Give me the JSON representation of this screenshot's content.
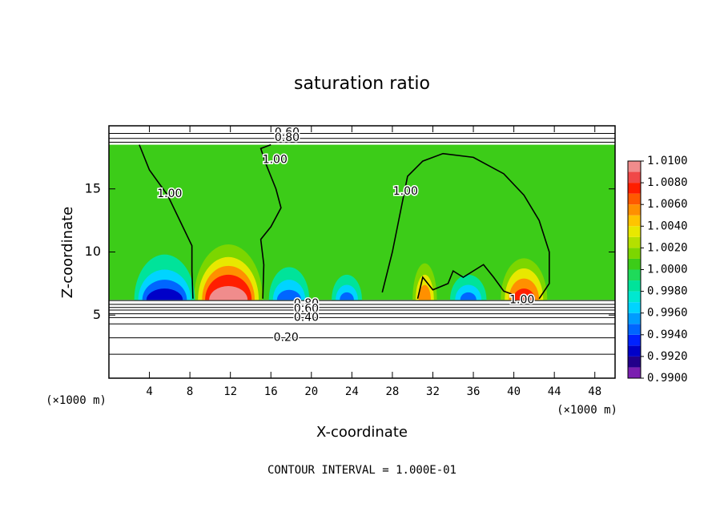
{
  "chart_data": {
    "type": "contour",
    "title": "saturation ratio",
    "xlabel": "X-coordinate",
    "ylabel": "Z-coordinate",
    "x_unit": "(×1000 m)",
    "footer": "CONTOUR INTERVAL = 1.000E-01",
    "xlim": [
      0,
      50
    ],
    "ylim": [
      0,
      20
    ],
    "xticks": [
      4,
      8,
      12,
      16,
      20,
      24,
      28,
      32,
      36,
      40,
      44,
      48
    ],
    "yticks": [
      5,
      10,
      15
    ],
    "field": {
      "value": 1.0005,
      "ylim": [
        6.2,
        18.5
      ]
    },
    "levels": [
      0.99,
      0.991,
      0.992,
      0.993,
      0.994,
      0.995,
      0.996,
      0.997,
      0.998,
      0.999,
      1.0,
      1.001,
      1.002,
      1.003,
      1.004,
      1.005,
      1.006,
      1.007,
      1.008,
      1.009,
      1.01
    ],
    "colors": [
      "#7a1fb0",
      "#22008a",
      "#0000c8",
      "#0022ff",
      "#0066ff",
      "#009cff",
      "#00d4ff",
      "#00e8d0",
      "#00e39a",
      "#1fda5a",
      "#3ccc18",
      "#7cd600",
      "#b4e000",
      "#e8e800",
      "#ffc400",
      "#ff9000",
      "#ff5a00",
      "#ff1e00",
      "#f04848",
      "#f08c8c"
    ],
    "colorbar_ticks": [
      {
        "value": 0.99,
        "label": "0.9900"
      },
      {
        "value": 0.992,
        "label": "0.9920"
      },
      {
        "value": 0.994,
        "label": "0.9940"
      },
      {
        "value": 0.996,
        "label": "0.9960"
      },
      {
        "value": 0.998,
        "label": "0.9980"
      },
      {
        "value": 1.0,
        "label": "1.0000"
      },
      {
        "value": 1.002,
        "label": "1.0020"
      },
      {
        "value": 1.004,
        "label": "1.0040"
      },
      {
        "value": 1.006,
        "label": "1.0060"
      },
      {
        "value": 1.008,
        "label": "1.0080"
      },
      {
        "value": 1.01,
        "label": "1.0100"
      }
    ],
    "features": [
      {
        "x": 11.8,
        "y": 6.2,
        "rx": 3.4,
        "ry": 4.4,
        "value": 1.0015
      },
      {
        "x": 11.8,
        "y": 6.2,
        "rx": 3.0,
        "ry": 3.4,
        "value": 1.0035
      },
      {
        "x": 11.8,
        "y": 6.2,
        "rx": 2.6,
        "ry": 2.7,
        "value": 1.0055
      },
      {
        "x": 11.8,
        "y": 6.2,
        "rx": 2.3,
        "ry": 2.0,
        "value": 1.0075
      },
      {
        "x": 11.8,
        "y": 6.2,
        "rx": 1.9,
        "ry": 1.1,
        "value": 1.0095
      },
      {
        "x": 5.5,
        "y": 6.2,
        "rx": 3.0,
        "ry": 3.6,
        "value": 0.9985
      },
      {
        "x": 5.5,
        "y": 6.2,
        "rx": 2.6,
        "ry": 2.4,
        "value": 0.9965
      },
      {
        "x": 5.5,
        "y": 6.2,
        "rx": 2.2,
        "ry": 1.6,
        "value": 0.9945
      },
      {
        "x": 5.5,
        "y": 6.2,
        "rx": 1.8,
        "ry": 0.9,
        "value": 0.9925
      },
      {
        "x": 17.8,
        "y": 6.2,
        "rx": 2.0,
        "ry": 2.6,
        "value": 0.9985
      },
      {
        "x": 17.8,
        "y": 6.2,
        "rx": 1.6,
        "ry": 1.6,
        "value": 0.9965
      },
      {
        "x": 17.8,
        "y": 6.2,
        "rx": 1.2,
        "ry": 0.8,
        "value": 0.9945
      },
      {
        "x": 23.5,
        "y": 6.2,
        "rx": 1.5,
        "ry": 2.0,
        "value": 0.9985
      },
      {
        "x": 23.5,
        "y": 6.2,
        "rx": 1.1,
        "ry": 1.2,
        "value": 0.9965
      },
      {
        "x": 23.5,
        "y": 6.2,
        "rx": 0.7,
        "ry": 0.6,
        "value": 0.9945
      },
      {
        "x": 31.2,
        "y": 6.2,
        "rx": 1.2,
        "ry": 2.9,
        "value": 1.0015
      },
      {
        "x": 31.2,
        "y": 6.2,
        "rx": 0.9,
        "ry": 2.0,
        "value": 1.0035
      },
      {
        "x": 31.2,
        "y": 6.2,
        "rx": 0.6,
        "ry": 1.2,
        "value": 1.0055
      },
      {
        "x": 35.5,
        "y": 6.2,
        "rx": 1.8,
        "ry": 2.0,
        "value": 0.9985
      },
      {
        "x": 35.5,
        "y": 6.2,
        "rx": 1.3,
        "ry": 1.2,
        "value": 0.9965
      },
      {
        "x": 35.5,
        "y": 6.2,
        "rx": 0.8,
        "ry": 0.6,
        "value": 0.9945
      },
      {
        "x": 41.0,
        "y": 6.2,
        "rx": 2.3,
        "ry": 3.3,
        "value": 1.0015
      },
      {
        "x": 41.0,
        "y": 6.2,
        "rx": 1.9,
        "ry": 2.5,
        "value": 1.0035
      },
      {
        "x": 41.0,
        "y": 6.2,
        "rx": 1.5,
        "ry": 1.7,
        "value": 1.0055
      },
      {
        "x": 41.0,
        "y": 6.2,
        "rx": 1.1,
        "ry": 0.9,
        "value": 1.0075
      }
    ],
    "contours": [
      {
        "value": 1.0,
        "label": "1.00",
        "label_x": 6.0,
        "label_y": 14.6,
        "points": [
          [
            8.3,
            6.3
          ],
          [
            8.2,
            8.5
          ],
          [
            8.2,
            10.5
          ],
          [
            7,
            12.5
          ],
          [
            5.8,
            14.5
          ],
          [
            4,
            16.5
          ],
          [
            3,
            18.5
          ]
        ]
      },
      {
        "value": 1.0,
        "label": "1.00",
        "label_x": 16.4,
        "label_y": 17.3,
        "points": [
          [
            15.2,
            6.3
          ],
          [
            15.3,
            9
          ],
          [
            15,
            11
          ],
          [
            16,
            12
          ],
          [
            17,
            13.5
          ],
          [
            16.5,
            15
          ],
          [
            15.5,
            17
          ],
          [
            15,
            18.2
          ],
          [
            16,
            18.5
          ]
        ]
      },
      {
        "value": 1.0,
        "label": "1.00",
        "label_x": 29.3,
        "label_y": 14.8,
        "points": [
          [
            27,
            6.8
          ],
          [
            28,
            10
          ],
          [
            29,
            14
          ],
          [
            29.5,
            16
          ],
          [
            31,
            17.2
          ],
          [
            33,
            17.8
          ],
          [
            36,
            17.5
          ],
          [
            39,
            16.2
          ],
          [
            41,
            14.5
          ],
          [
            42.5,
            12.5
          ],
          [
            43.5,
            10
          ],
          [
            43.5,
            7.5
          ],
          [
            42.5,
            6.3
          ]
        ]
      },
      {
        "value": 1.0,
        "label": "1.00",
        "label_x": 40.8,
        "label_y": 6.2,
        "points": [
          [
            30.5,
            6.3
          ],
          [
            31,
            8
          ],
          [
            32,
            7
          ],
          [
            33.5,
            7.5
          ],
          [
            34,
            8.5
          ],
          [
            35,
            8
          ],
          [
            37,
            9
          ],
          [
            38,
            8
          ],
          [
            39,
            6.9
          ],
          [
            40,
            6.6
          ]
        ]
      },
      {
        "value": 0.9,
        "points": [
          [
            0,
            6.15
          ],
          [
            50,
            6.15
          ]
        ]
      },
      {
        "value": 0.8,
        "label": "0.80",
        "label_x": 19.5,
        "label_y": 5.9,
        "points": [
          [
            0,
            5.85
          ],
          [
            50,
            5.85
          ]
        ]
      },
      {
        "value": 0.7,
        "points": [
          [
            0,
            5.6
          ],
          [
            50,
            5.6
          ]
        ]
      },
      {
        "value": 0.6,
        "label": "0.60",
        "label_x": 19.5,
        "label_y": 5.5,
        "points": [
          [
            0,
            5.4
          ],
          [
            50,
            5.4
          ]
        ]
      },
      {
        "value": 0.5,
        "points": [
          [
            0,
            5.1
          ],
          [
            50,
            5.1
          ]
        ]
      },
      {
        "value": 0.4,
        "label": "0.40",
        "label_x": 19.5,
        "label_y": 4.8,
        "points": [
          [
            0,
            4.8
          ],
          [
            50,
            4.8
          ]
        ]
      },
      {
        "value": 0.3,
        "points": [
          [
            0,
            4.3
          ],
          [
            50,
            4.3
          ]
        ]
      },
      {
        "value": 0.2,
        "label": "0.20",
        "label_x": 17.5,
        "label_y": 3.2,
        "points": [
          [
            0,
            3.2
          ],
          [
            50,
            3.2
          ]
        ]
      },
      {
        "value": 0.1,
        "points": [
          [
            0,
            1.9
          ],
          [
            50,
            1.9
          ]
        ]
      },
      {
        "value": 0.6,
        "label": "0.60",
        "label_x": 17.6,
        "label_y": 19.45,
        "points": [
          [
            0,
            19.4
          ],
          [
            50,
            19.4
          ]
        ]
      },
      {
        "value": 0.8,
        "label": "0.80",
        "label_x": 17.6,
        "label_y": 19.05,
        "points": [
          [
            0,
            19.0
          ],
          [
            50,
            19.0
          ]
        ]
      },
      {
        "value": 0.9,
        "points": [
          [
            0,
            18.7
          ],
          [
            50,
            18.7
          ]
        ]
      }
    ]
  }
}
